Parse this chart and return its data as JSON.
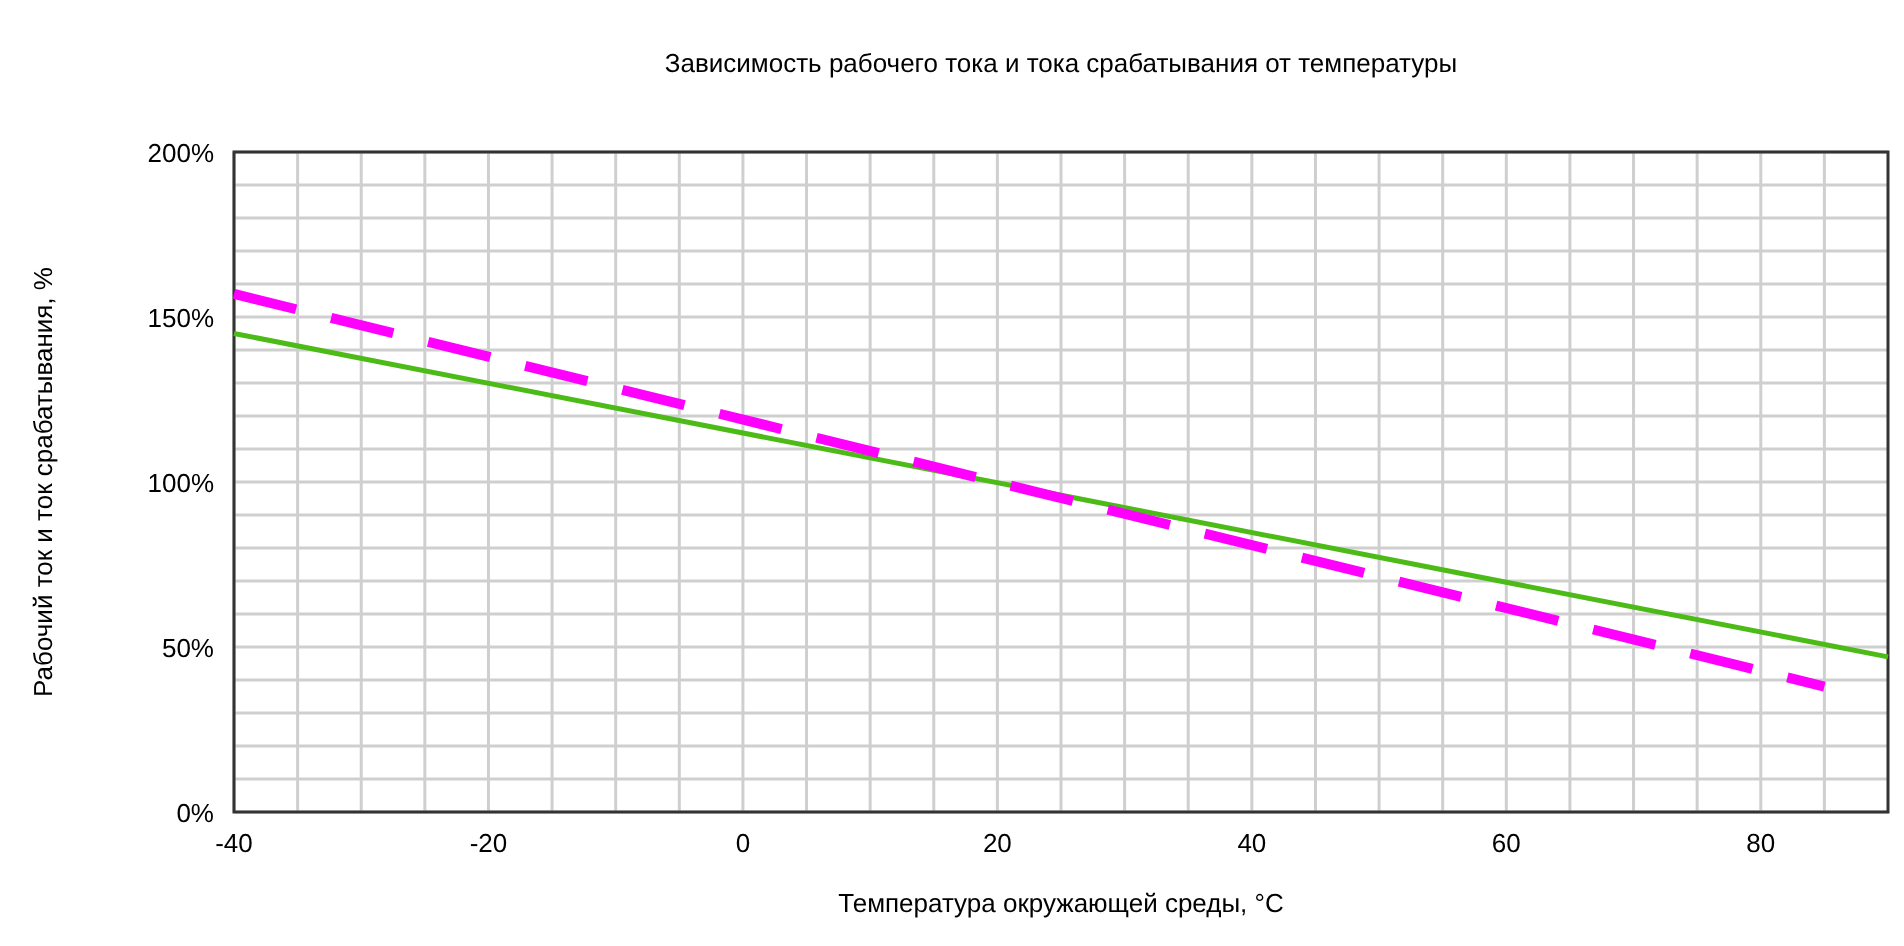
{
  "chart_data": {
    "type": "line",
    "title": "Зависимость рабочего тока и тока срабатывания от температуры",
    "xlabel": "Температура окружающей среды, °C",
    "ylabel": "Рабочий ток и ток срабатывания, %",
    "series": [
      {
        "color": "#4cbb17",
        "line_style": "solid",
        "x": [
          -40,
          90
        ],
        "values": [
          145,
          47
        ]
      },
      {
        "color": "#ff00ff",
        "line_style": "dashed",
        "x": [
          -40,
          85
        ],
        "values": [
          157,
          38
        ]
      }
    ],
    "xlim": [
      -40,
      90
    ],
    "xticks": [
      -40,
      {
        "value": -35,
        "label": null
      },
      {
        "value": -30,
        "label": null
      },
      {
        "value": -25,
        "label": null
      },
      -20,
      {
        "value": -15,
        "label": null
      },
      {
        "value": -10,
        "label": null
      },
      {
        "value": -5,
        "label": null
      },
      0,
      {
        "value": 5,
        "label": null
      },
      {
        "value": 10,
        "label": null
      },
      {
        "value": 15,
        "label": null
      },
      20,
      {
        "value": 25,
        "label": null
      },
      {
        "value": 30,
        "label": null
      },
      {
        "value": 35,
        "label": null
      },
      40,
      {
        "value": 45,
        "label": null
      },
      {
        "value": 50,
        "label": null
      },
      {
        "value": 55,
        "label": null
      },
      60,
      {
        "value": 65,
        "label": null
      },
      {
        "value": 70,
        "label": null
      },
      {
        "value": 75,
        "label": null
      },
      80,
      {
        "value": 85,
        "label": null
      }
    ],
    "ylim": [
      0,
      200
    ],
    "yticks": [
      {
        "value": 0,
        "label": "0%"
      },
      {
        "value": 10,
        "label": null
      },
      {
        "value": 20,
        "label": null
      },
      {
        "value": 30,
        "label": null
      },
      {
        "value": 40,
        "label": null
      },
      {
        "value": 50,
        "label": "50%"
      },
      {
        "value": 60,
        "label": null
      },
      {
        "value": 70,
        "label": null
      },
      {
        "value": 80,
        "label": null
      },
      {
        "value": 90,
        "label": null
      },
      {
        "value": 100,
        "label": "100%"
      },
      {
        "value": 110,
        "label": null
      },
      {
        "value": 120,
        "label": null
      },
      {
        "value": 130,
        "label": null
      },
      {
        "value": 140,
        "label": null
      },
      {
        "value": 150,
        "label": "150%"
      },
      {
        "value": 160,
        "label": null
      },
      {
        "value": 170,
        "label": null
      },
      {
        "value": 180,
        "label": null
      },
      {
        "value": 190,
        "label": null
      },
      {
        "value": 200,
        "label": "200%"
      }
    ],
    "grid": true,
    "marker": "none"
  }
}
